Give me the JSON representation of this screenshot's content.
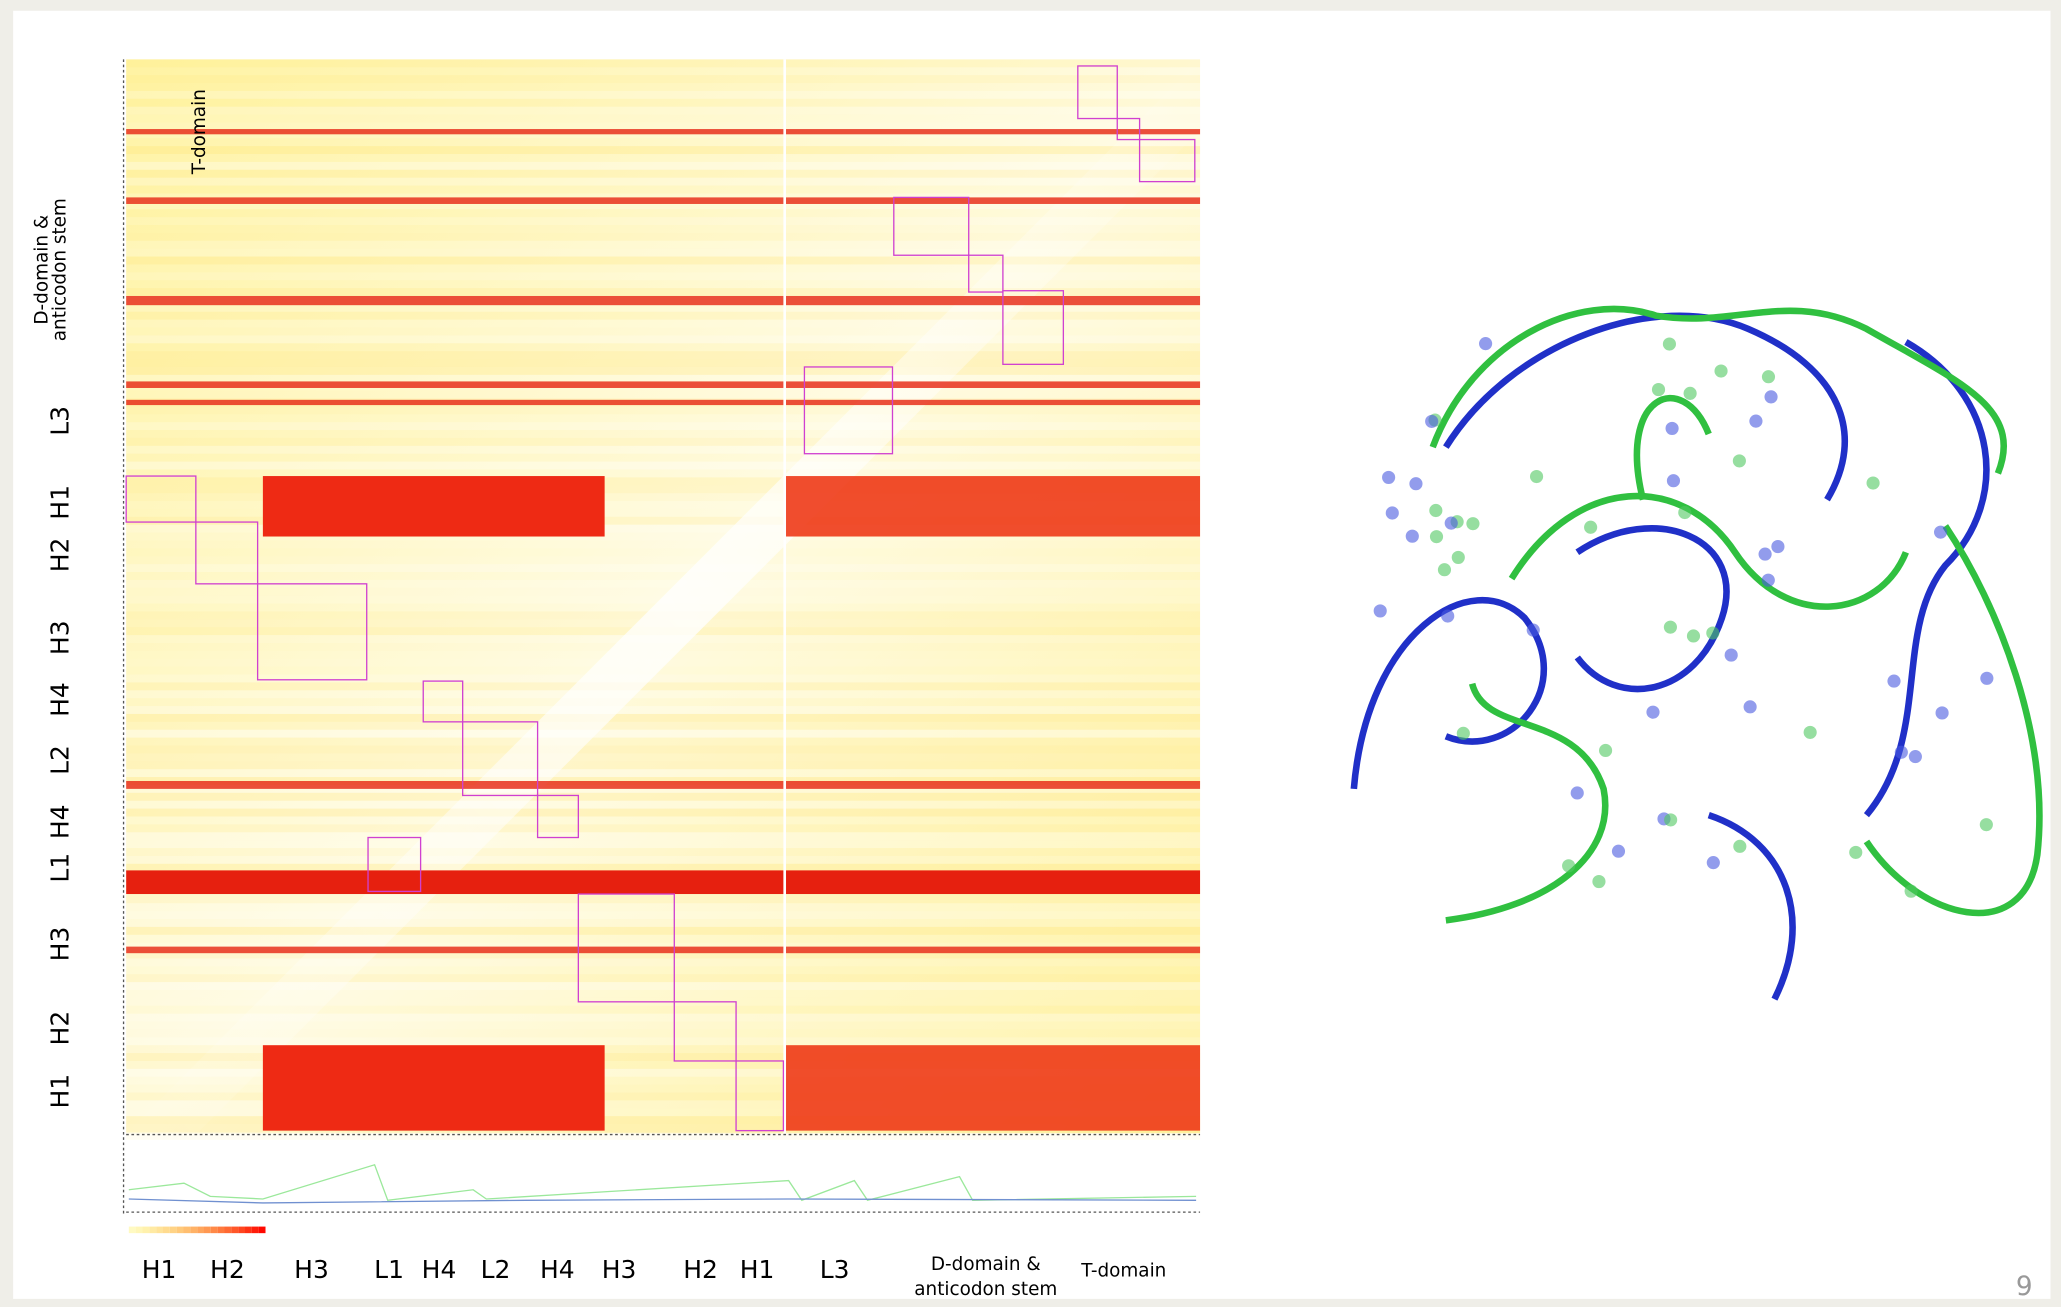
{
  "heatmap": {
    "inner_label": "T-domain",
    "row_labels": [
      [
        "D-domain &",
        "anticodon stem"
      ],
      "L3",
      "H1",
      "H2",
      "H3",
      "H4",
      "L2",
      "H4",
      "L1",
      "H3",
      "H2",
      "H1"
    ],
    "column_labels": [
      "H1",
      "H2",
      "H3",
      "L1",
      "H4",
      "L2",
      "H4",
      "H3",
      "H2",
      "H1",
      "L3",
      [
        "D-domain &",
        "anticodon stem"
      ],
      "T-domain"
    ]
  },
  "page_number": "9"
}
